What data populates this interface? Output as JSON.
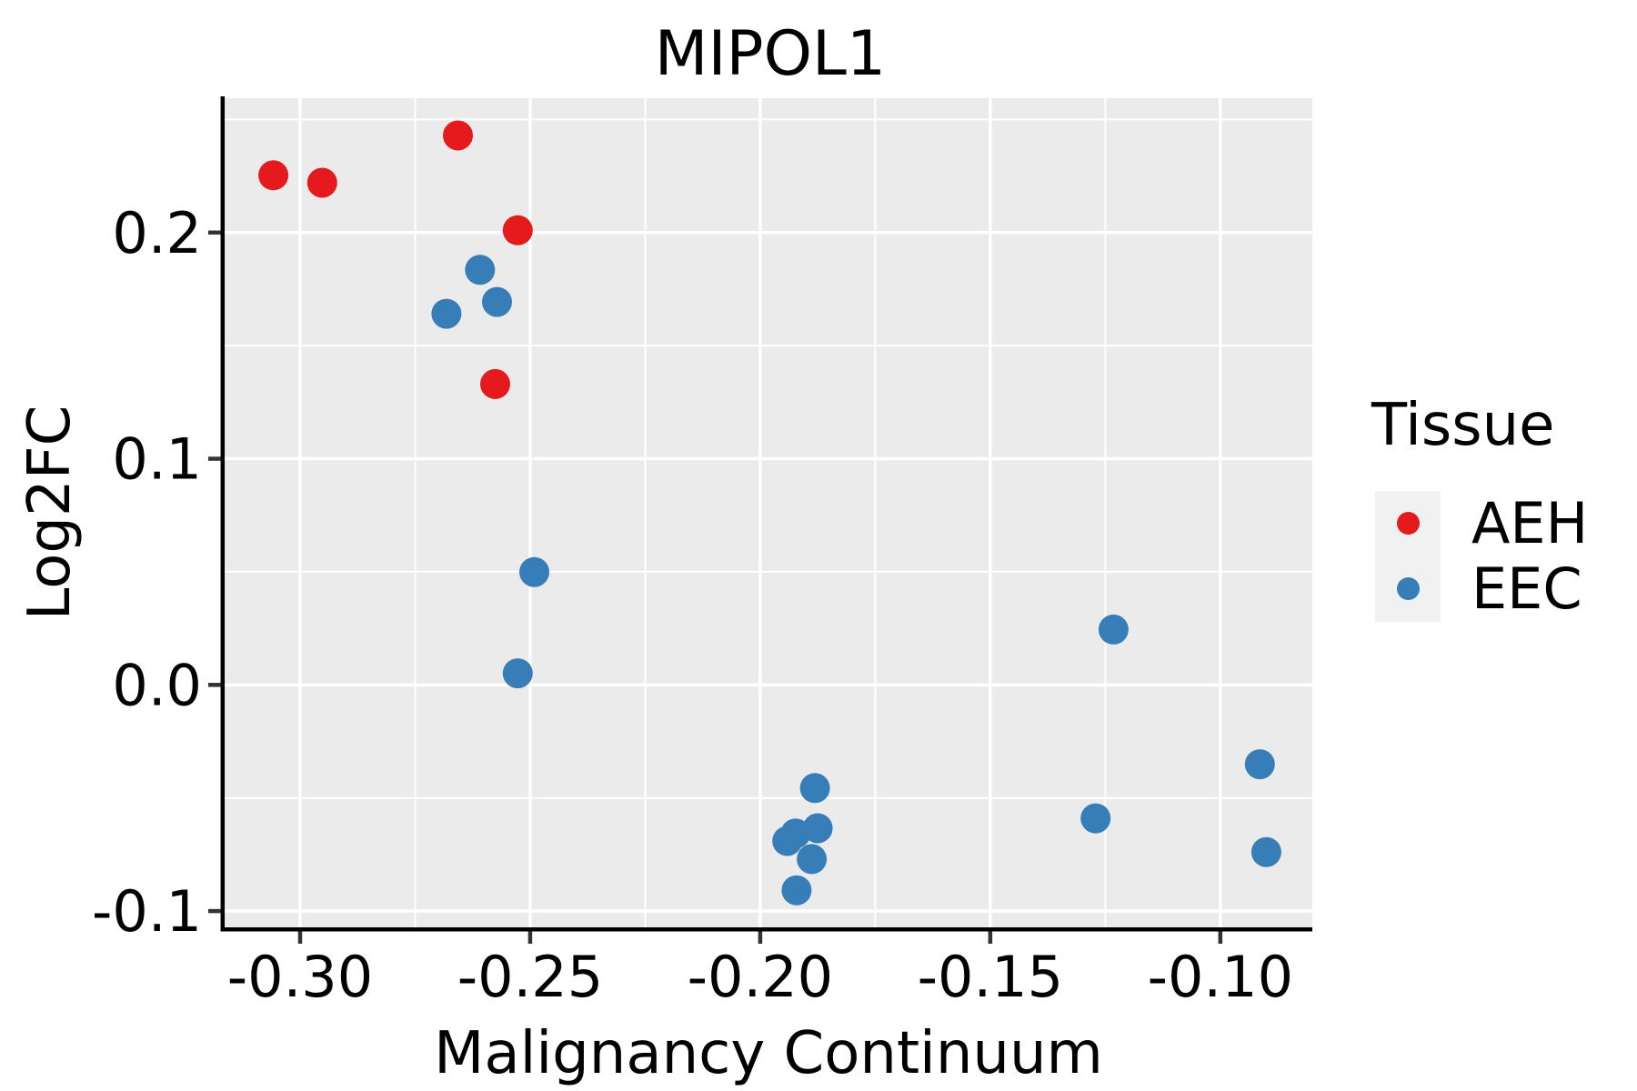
{
  "page": {
    "background": "#ffffff",
    "text_color": "#000000"
  },
  "chart_data": {
    "type": "scatter",
    "title": "MIPOL1",
    "xlabel": "Malignancy Continuum",
    "ylabel": "Log2FC",
    "xlim": [
      -0.3164,
      -0.08
    ],
    "ylim": [
      -0.1072,
      0.2594
    ],
    "grid": true,
    "panel_background": "#ebebeb",
    "gridline_color": "#ffffff",
    "spine_color": "#000000",
    "tick_color": "#333333",
    "x_ticks": {
      "values": [
        -0.3,
        -0.25,
        -0.2,
        -0.15,
        -0.1
      ],
      "labels": [
        "-0.30",
        "-0.25",
        "-0.20",
        "-0.15",
        "-0.10"
      ]
    },
    "y_ticks": {
      "values": [
        0.2,
        0.1,
        0.0,
        -0.1
      ],
      "labels": [
        "0.2",
        "0.1",
        "0.0",
        "-0.1"
      ]
    },
    "x_minor_ticks": [
      -0.275,
      -0.225,
      -0.175,
      -0.125
    ],
    "y_minor_ticks": [
      0.25,
      0.15,
      0.05,
      -0.05
    ],
    "legend": {
      "title": "Tissue",
      "position": "right",
      "key_background": "#f1f1f1"
    },
    "series": [
      {
        "name": "AEH",
        "color": "#e41a1c",
        "points": [
          [
            -0.3058,
            0.2253
          ],
          [
            -0.2952,
            0.222
          ],
          [
            -0.2657,
            0.2429
          ],
          [
            -0.2527,
            0.201
          ],
          [
            -0.2576,
            0.133
          ]
        ]
      },
      {
        "name": "EEC",
        "color": "#377eb8",
        "points": [
          [
            -0.2609,
            0.1835
          ],
          [
            -0.2572,
            0.1693
          ],
          [
            -0.2682,
            0.1641
          ],
          [
            -0.2491,
            0.0499
          ],
          [
            -0.2527,
            0.0051
          ],
          [
            -0.1881,
            -0.0456
          ],
          [
            -0.1875,
            -0.0634
          ],
          [
            -0.1923,
            -0.0657
          ],
          [
            -0.1941,
            -0.069
          ],
          [
            -0.1888,
            -0.077
          ],
          [
            -0.1921,
            -0.0908
          ],
          [
            -0.1232,
            0.0245
          ],
          [
            -0.1271,
            -0.059
          ],
          [
            -0.0914,
            -0.0351
          ],
          [
            -0.09,
            -0.0739
          ]
        ]
      }
    ]
  }
}
